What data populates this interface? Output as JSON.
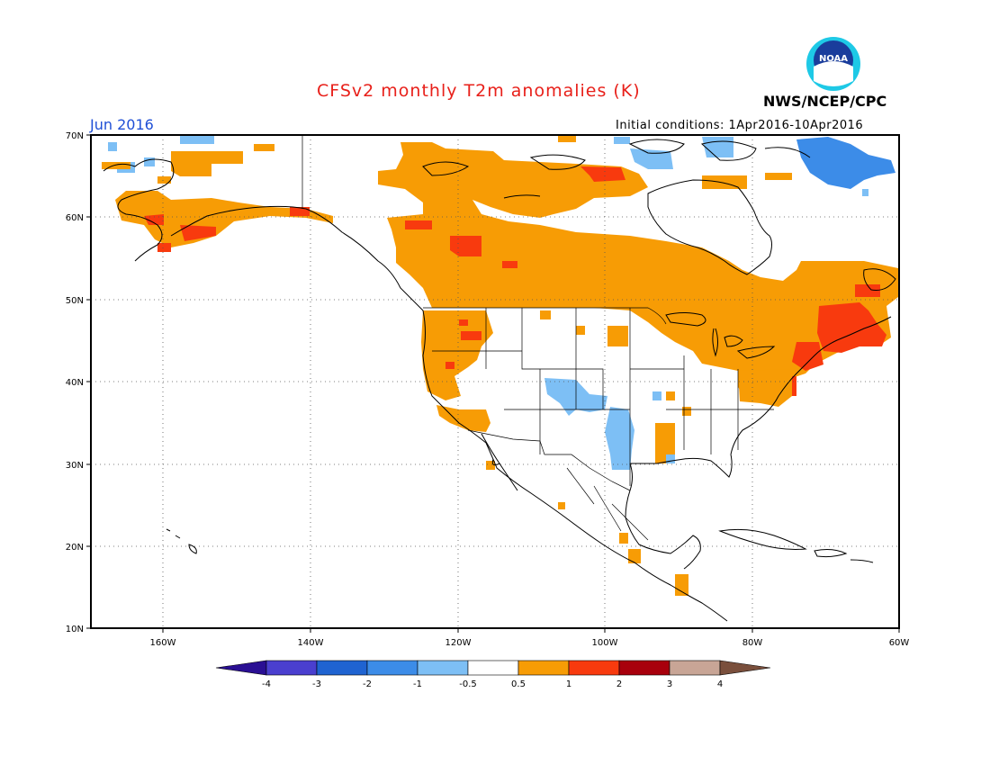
{
  "header": {
    "title": "CFSv2 monthly T2m anomalies (K)",
    "agency": "NWS/NCEP/CPC",
    "logo_text": "NOAA",
    "month": "Jun 2016",
    "initial_conditions": "Initial conditions: 1Apr2016-10Apr2016"
  },
  "colors": {
    "title": "#e8201a",
    "month": "#1f4fd6",
    "logo_ring": "#1ec9e6",
    "logo_core": "#1a3d9c"
  },
  "map": {
    "lat_labels": [
      "70N",
      "60N",
      "50N",
      "40N",
      "30N",
      "20N",
      "10N"
    ],
    "lon_labels": [
      "160W",
      "140W",
      "120W",
      "100W",
      "80W",
      "60W"
    ],
    "lat_range": [
      10,
      70
    ],
    "lon_range": [
      -170,
      -60
    ],
    "anomaly_regions": [
      {
        "region": "Alaska / NW Canada",
        "level": "0.5-1"
      },
      {
        "region": "Central and Eastern Canada",
        "level": "0.5-1"
      },
      {
        "region": "Quebec / Maritimes / New England",
        "level": "1-2"
      },
      {
        "region": "Pacific Northwest",
        "level": "0.5-1"
      },
      {
        "region": "Southwest US / California",
        "level": "0.5-1"
      },
      {
        "region": "Southern Plains",
        "level": "-1 to -0.5"
      },
      {
        "region": "Central Rockies",
        "level": "-1 to -0.5"
      },
      {
        "region": "Greenland / Baffin",
        "level": "-1 to -0.5"
      }
    ]
  },
  "legend": {
    "labels": [
      "-4",
      "-3",
      "-2",
      "-1",
      "-0.5",
      "0.5",
      "1",
      "2",
      "3",
      "4"
    ],
    "colors": [
      "#2a0f93",
      "#4a3fcf",
      "#1f63d1",
      "#3c8ce8",
      "#7dbff5",
      "#ffffff",
      "#f79c05",
      "#f83a0e",
      "#a8000c",
      "#c8a596",
      "#7a4f3c"
    ]
  }
}
